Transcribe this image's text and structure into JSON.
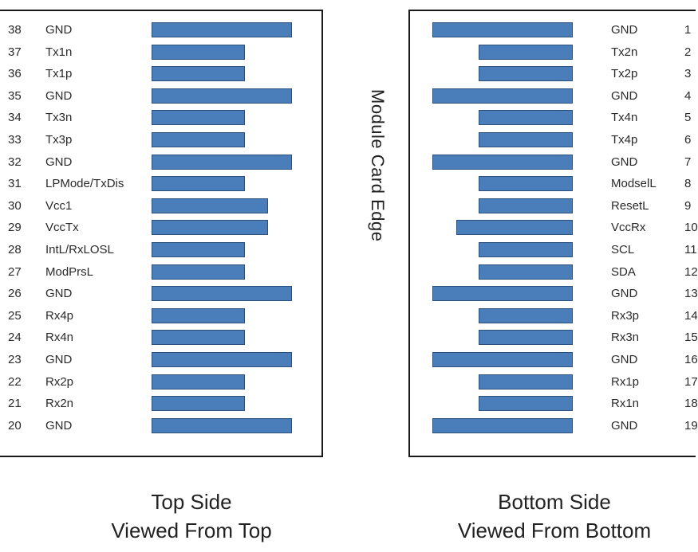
{
  "edge_label": "Module Card Edge",
  "pad_color": "#4a7ebb",
  "top_side": {
    "caption_line1": "Top Side",
    "caption_line2": "Viewed From Top",
    "pins": [
      {
        "pin": "38",
        "signal": "GND",
        "pad": "long"
      },
      {
        "pin": "37",
        "signal": "Tx1n",
        "pad": "short"
      },
      {
        "pin": "36",
        "signal": "Tx1p",
        "pad": "short"
      },
      {
        "pin": "35",
        "signal": "GND",
        "pad": "long"
      },
      {
        "pin": "34",
        "signal": "Tx3n",
        "pad": "short"
      },
      {
        "pin": "33",
        "signal": "Tx3p",
        "pad": "short"
      },
      {
        "pin": "32",
        "signal": "GND",
        "pad": "long"
      },
      {
        "pin": "31",
        "signal": "LPMode/TxDis",
        "pad": "short"
      },
      {
        "pin": "30",
        "signal": "Vcc1",
        "pad": "medium"
      },
      {
        "pin": "29",
        "signal": "VccTx",
        "pad": "medium"
      },
      {
        "pin": "28",
        "signal": "IntL/RxLOSL",
        "pad": "short"
      },
      {
        "pin": "27",
        "signal": "ModPrsL",
        "pad": "short"
      },
      {
        "pin": "26",
        "signal": "GND",
        "pad": "long"
      },
      {
        "pin": "25",
        "signal": "Rx4p",
        "pad": "short"
      },
      {
        "pin": "24",
        "signal": "Rx4n",
        "pad": "short"
      },
      {
        "pin": "23",
        "signal": "GND",
        "pad": "long"
      },
      {
        "pin": "22",
        "signal": "Rx2p",
        "pad": "short"
      },
      {
        "pin": "21",
        "signal": "Rx2n",
        "pad": "short"
      },
      {
        "pin": "20",
        "signal": "GND",
        "pad": "long"
      }
    ]
  },
  "bottom_side": {
    "caption_line1": "Bottom Side",
    "caption_line2": "Viewed From Bottom",
    "pins": [
      {
        "pin": "1",
        "signal": "GND",
        "pad": "long"
      },
      {
        "pin": "2",
        "signal": "Tx2n",
        "pad": "short"
      },
      {
        "pin": "3",
        "signal": "Tx2p",
        "pad": "short"
      },
      {
        "pin": "4",
        "signal": "GND",
        "pad": "long"
      },
      {
        "pin": "5",
        "signal": "Tx4n",
        "pad": "short"
      },
      {
        "pin": "6",
        "signal": "Tx4p",
        "pad": "short"
      },
      {
        "pin": "7",
        "signal": "GND",
        "pad": "long"
      },
      {
        "pin": "8",
        "signal": "ModselL",
        "pad": "short"
      },
      {
        "pin": "9",
        "signal": "ResetL",
        "pad": "short"
      },
      {
        "pin": "10",
        "signal": "VccRx",
        "pad": "medium"
      },
      {
        "pin": "11",
        "signal": "SCL",
        "pad": "short"
      },
      {
        "pin": "12",
        "signal": "SDA",
        "pad": "short"
      },
      {
        "pin": "13",
        "signal": "GND",
        "pad": "long"
      },
      {
        "pin": "14",
        "signal": "Rx3p",
        "pad": "short"
      },
      {
        "pin": "15",
        "signal": "Rx3n",
        "pad": "short"
      },
      {
        "pin": "16",
        "signal": "GND",
        "pad": "long"
      },
      {
        "pin": "17",
        "signal": "Rx1p",
        "pad": "short"
      },
      {
        "pin": "18",
        "signal": "Rx1n",
        "pad": "short"
      },
      {
        "pin": "19",
        "signal": "GND",
        "pad": "long"
      }
    ]
  }
}
